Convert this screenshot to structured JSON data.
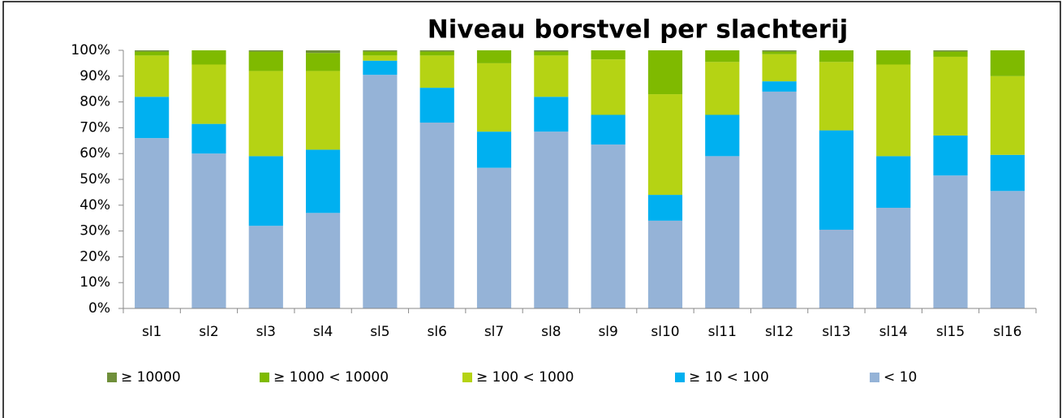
{
  "chart_data": {
    "type": "stacked_bar",
    "title": "Niveau borstvel per slachterij",
    "categories": [
      "sl1",
      "sl2",
      "sl3",
      "sl4",
      "sl5",
      "sl6",
      "sl7",
      "sl8",
      "sl9",
      "sl10",
      "sl11",
      "sl12",
      "sl13",
      "sl14",
      "sl15",
      "sl16"
    ],
    "series": [
      {
        "name": "< 10",
        "color": "#95b3d7",
        "values": [
          66,
          60,
          32,
          37,
          90.5,
          72,
          54.5,
          68.5,
          63.5,
          34,
          59,
          84,
          30.5,
          39,
          51.5,
          45.5
        ]
      },
      {
        "name": "≥ 10 < 100",
        "color": "#00b0f0",
        "values": [
          16,
          11.5,
          27,
          24.5,
          5.5,
          13.5,
          14,
          13.5,
          11.5,
          10,
          16,
          4,
          38.5,
          20,
          15.5,
          14
        ]
      },
      {
        "name": "≥ 100 < 1000",
        "color": "#b5d314",
        "values": [
          16,
          23,
          33,
          30.5,
          2,
          12.5,
          26.5,
          16,
          21.5,
          39,
          20.5,
          10.5,
          26.5,
          35.5,
          30.5,
          30.5
        ]
      },
      {
        "name": "≥ 1000 < 10000",
        "color": "#7fba00",
        "values": [
          1.5,
          5.5,
          7.5,
          7,
          1.5,
          1.5,
          5,
          1.5,
          3.5,
          17,
          4.5,
          1,
          4.5,
          5.5,
          2,
          10
        ]
      },
      {
        "name": "≥ 10000",
        "color": "#6f8f3a",
        "values": [
          0.5,
          0,
          0.5,
          1,
          0.5,
          0.5,
          0,
          0.5,
          0,
          0,
          0,
          0.5,
          0,
          0,
          0.5,
          0
        ]
      }
    ],
    "legend_order": "reversed",
    "ylim": [
      0,
      100
    ],
    "yticks": [
      {
        "value": 0,
        "label": "0%"
      },
      {
        "value": 10,
        "label": "10%"
      },
      {
        "value": 20,
        "label": "20%"
      },
      {
        "value": 30,
        "label": "30%"
      },
      {
        "value": 40,
        "label": "40%"
      },
      {
        "value": 50,
        "label": "50%"
      },
      {
        "value": 60,
        "label": "60%"
      },
      {
        "value": 70,
        "label": "70%"
      },
      {
        "value": 80,
        "label": "80%"
      },
      {
        "value": 90,
        "label": "90%"
      },
      {
        "value": 100,
        "label": "100%"
      }
    ]
  }
}
